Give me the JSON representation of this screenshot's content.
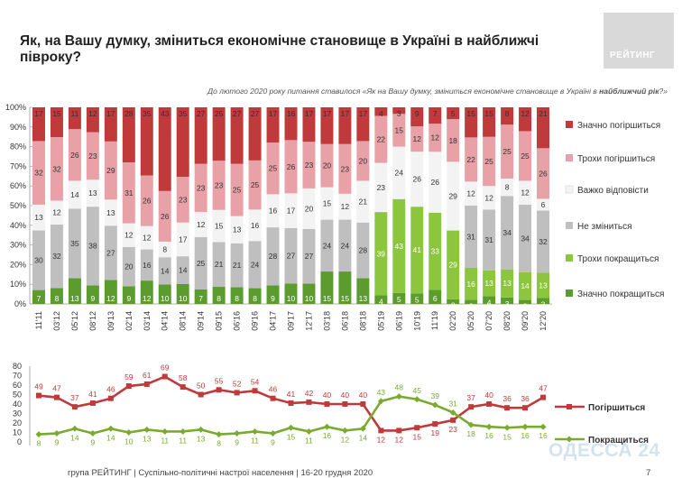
{
  "header": {
    "title": "Як, на Вашу думку, зміниться економічне становище в Україні в найближчі півроку?",
    "logo": "РЕЙТИНГ",
    "note_prefix": "До лютого 2020 року питання ставилося «Як на Вашу думку, зміниться економічне становище в Україні в ",
    "note_bold": "найближчий рік",
    "note_suffix": "?»"
  },
  "footer": {
    "source": "група РЕЙТИНГ | Суспільно-політичні настрої населення | 16-20 грудня 2020",
    "page": "7",
    "watermark": "ОДЕССА 24"
  },
  "colors": {
    "sig_worse": "#c0393b",
    "some_worse": "#e8a1a7",
    "hard": "#f3f3f3",
    "no_change": "#bfbfbf",
    "some_better": "#8cc63f",
    "sig_better": "#5c9b2d",
    "line_worse": "#c0393b",
    "line_better": "#7aab2f"
  },
  "chart_data": [
    {
      "type": "bar",
      "stacked": true,
      "categories": [
        "11'11",
        "03'12",
        "05'12",
        "08'12",
        "09'13",
        "02'14",
        "03'14",
        "04'14",
        "08'14",
        "09'14",
        "09'15",
        "06'16",
        "09'16",
        "04'17",
        "09'17",
        "12'17",
        "03'18",
        "06'18",
        "08'18",
        "05'19",
        "06'19",
        "10'19",
        "11'19",
        "02'20",
        "05'20",
        "07'20",
        "08'20",
        "09'20",
        "12'20"
      ],
      "ylim": [
        0,
        100
      ],
      "yticks": [
        "0%",
        "10%",
        "20%",
        "30%",
        "40%",
        "50%",
        "60%",
        "70%",
        "80%",
        "90%",
        "100%"
      ],
      "legend_position": "right",
      "series": [
        {
          "name": "Значно покращиться",
          "values": [
            7,
            8,
            13,
            9,
            12,
            9,
            12,
            10,
            10,
            7,
            8,
            8,
            8,
            9,
            10,
            10,
            15,
            15,
            13,
            4,
            5,
            5,
            6,
            2,
            2,
            4,
            3,
            2,
            3
          ]
        },
        {
          "name": "Трохи покращиться",
          "values": [
            0,
            0,
            0,
            0,
            0,
            0,
            0,
            0,
            0,
            0,
            0,
            0,
            0,
            0,
            0,
            0,
            0,
            0,
            0,
            39,
            43,
            41,
            33,
            29,
            16,
            13,
            13,
            14,
            13
          ]
        },
        {
          "name": "Не зміниться",
          "values": [
            30,
            32,
            35,
            38,
            27,
            20,
            16,
            14,
            14,
            25,
            21,
            21,
            24,
            28,
            27,
            27,
            24,
            24,
            28,
            0,
            0,
            0,
            0,
            0,
            31,
            31,
            34,
            34,
            32
          ]
        },
        {
          "name": "Важко відповісти",
          "values": [
            13,
            12,
            14,
            13,
            13,
            12,
            12,
            8,
            17,
            12,
            15,
            13,
            16,
            16,
            17,
            20,
            15,
            12,
            21,
            23,
            24,
            26,
            26,
            29,
            12,
            12,
            8,
            12,
            6
          ]
        },
        {
          "name": "Трохи погіршиться",
          "values": [
            32,
            32,
            26,
            23,
            29,
            31,
            26,
            26,
            23,
            23,
            23,
            25,
            25,
            25,
            26,
            23,
            20,
            23,
            20,
            22,
            15,
            12,
            12,
            18,
            22,
            25,
            25,
            25,
            26
          ]
        },
        {
          "name": "Значно погіршиться",
          "values": [
            17,
            15,
            11,
            12,
            17,
            28,
            35,
            43,
            35,
            27,
            25,
            27,
            27,
            17,
            16,
            17,
            17,
            17,
            17,
            4,
            3,
            9,
            7,
            5,
            15,
            15,
            8,
            12,
            21
          ]
        }
      ]
    },
    {
      "type": "line",
      "x": [
        "11'11",
        "03'12",
        "05'12",
        "08'12",
        "09'13",
        "02'14",
        "03'14",
        "04'14",
        "08'14",
        "09'14",
        "09'15",
        "06'16",
        "09'16",
        "04'17",
        "09'17",
        "12'17",
        "03'18",
        "06'18",
        "08'18",
        "05'19",
        "06'19",
        "10'19",
        "11'19",
        "02'20",
        "05'20",
        "07'20",
        "08'20",
        "09'20",
        "12'20"
      ],
      "ylim": [
        0,
        80
      ],
      "yticks": [
        "0",
        "10",
        "20",
        "30",
        "40",
        "50",
        "60",
        "70",
        "80"
      ],
      "legend_position": "right",
      "series": [
        {
          "name": "Погіршиться",
          "values": [
            49,
            47,
            37,
            41,
            46,
            59,
            61,
            69,
            58,
            50,
            55,
            52,
            54,
            46,
            41,
            42,
            40,
            40,
            40,
            12,
            12,
            15,
            19,
            23,
            37,
            40,
            36,
            36,
            47
          ]
        },
        {
          "name": "Покращиться",
          "values": [
            8,
            9,
            14,
            9,
            14,
            10,
            13,
            11,
            11,
            13,
            8,
            9,
            11,
            9,
            15,
            11,
            16,
            12,
            14,
            43,
            48,
            45,
            39,
            31,
            18,
            16,
            15,
            16,
            16
          ]
        }
      ]
    }
  ]
}
